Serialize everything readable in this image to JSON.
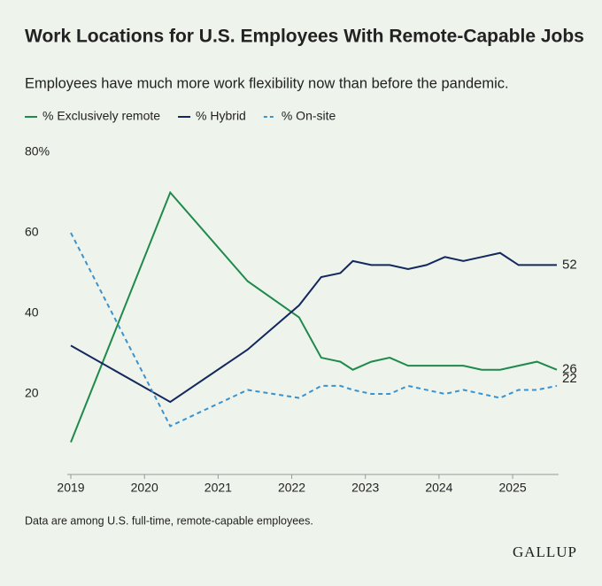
{
  "chart_data": {
    "type": "line",
    "title": "Work Locations for U.S. Employees With Remote-Capable Jobs",
    "subtitle": "Employees have much more work flexibility now than before the pandemic.",
    "x": [
      2019,
      2020.35,
      2021.4,
      2022.1,
      2022.4,
      2022.66,
      2022.83,
      2023.08,
      2023.33,
      2023.58,
      2023.83,
      2024.08,
      2024.33,
      2024.58,
      2024.83,
      2025.08,
      2025.33,
      2025.6
    ],
    "series": [
      {
        "name": "% Exclusively remote",
        "color": "#1e8a4c",
        "dashed": false,
        "values": [
          8,
          70,
          48,
          39,
          29,
          28,
          26,
          28,
          29,
          27,
          27,
          27,
          27,
          26,
          26,
          27,
          28,
          26
        ]
      },
      {
        "name": "% Hybrid",
        "color": "#13285e",
        "dashed": false,
        "values": [
          32,
          18,
          31,
          42,
          49,
          50,
          53,
          52,
          52,
          51,
          52,
          54,
          53,
          54,
          55,
          52,
          52,
          52
        ]
      },
      {
        "name": "% On-site",
        "color": "#3a93cf",
        "dashed": true,
        "values": [
          60,
          12,
          21,
          19,
          22,
          22,
          21,
          20,
          20,
          22,
          21,
          20,
          21,
          20,
          19,
          21,
          21,
          22
        ]
      }
    ],
    "xlim": [
      2019,
      2025.6
    ],
    "xticks": [
      2019,
      2020,
      2021,
      2022,
      2023,
      2024,
      2025
    ],
    "ylim": [
      0,
      80
    ],
    "yticks": [
      20,
      40,
      60,
      {
        "value": 80,
        "label": "80%"
      }
    ],
    "note": "Data are among U.S. full-time, remote-capable employees.",
    "source": "GALLUP"
  }
}
